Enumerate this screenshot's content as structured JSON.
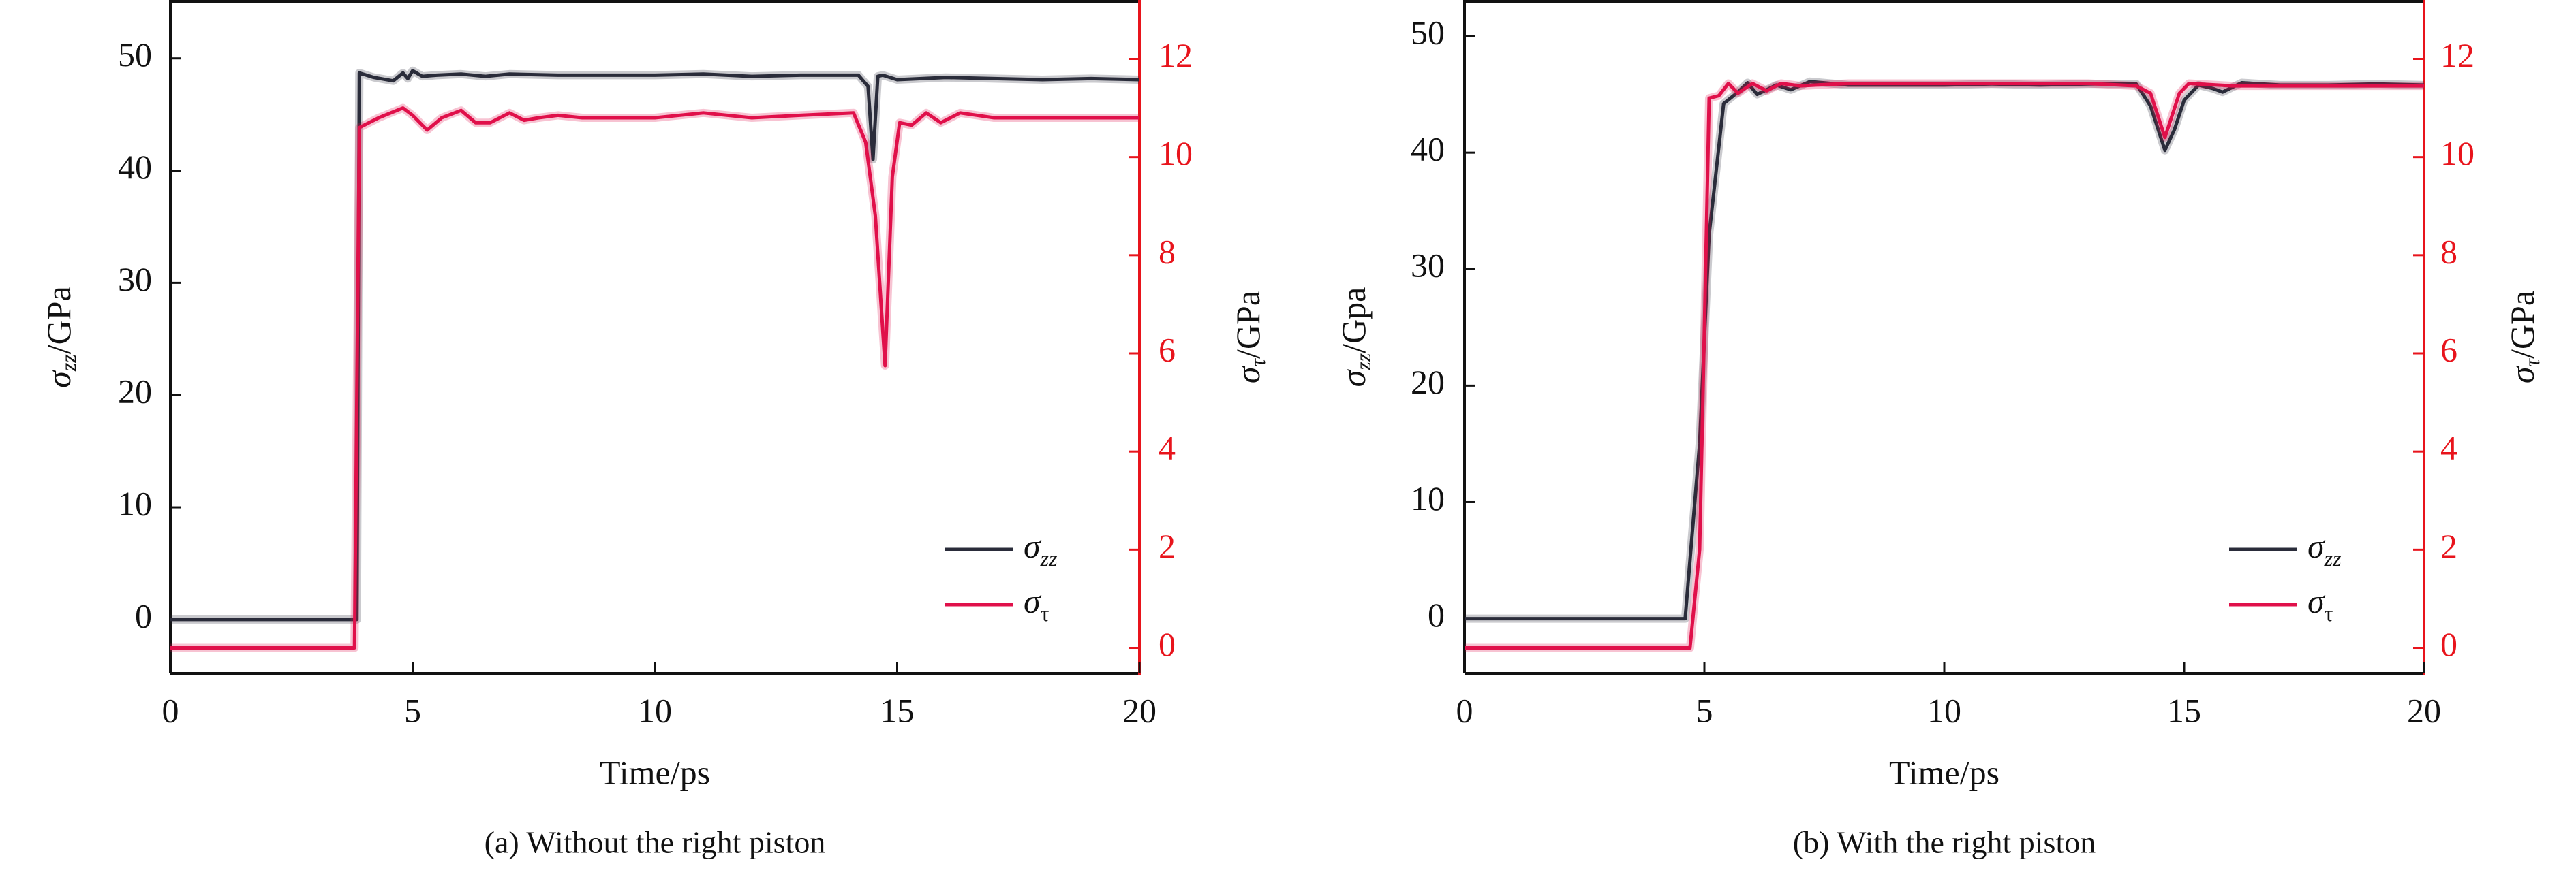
{
  "colors": {
    "szz": "#2a2c3a",
    "st": "#e0104a",
    "right_axis": "#e8141c"
  },
  "chart_data": [
    {
      "type": "line",
      "caption": "(a) Without the right piston",
      "xlabel": "Time/ps",
      "ylabel_left": {
        "sym": "σ",
        "sub": "zz",
        "unit": "/GPa"
      },
      "ylabel_right": {
        "sym": "σ",
        "sub": "τ",
        "unit": "/GPa"
      },
      "xlim": [
        0,
        20
      ],
      "ylim_left": [
        -4.8,
        55.2
      ],
      "ylim_right": [
        -0.52,
        13.2
      ],
      "xticks": [
        0,
        5,
        10,
        15,
        20
      ],
      "yticks_left": [
        0,
        10,
        20,
        30,
        40,
        50
      ],
      "yticks_right": [
        0,
        2,
        4,
        6,
        8,
        10,
        12
      ],
      "legend": {
        "position": "bottom-right",
        "entries": [
          {
            "sym": "σ",
            "sub": "zz"
          },
          {
            "sym": "σ",
            "sub": "τ"
          }
        ]
      },
      "series": [
        {
          "name": "σzz",
          "axis": "left",
          "x": [
            0,
            3.85,
            3.9,
            4.2,
            4.6,
            4.8,
            4.9,
            5.0,
            5.2,
            5.5,
            6,
            6.5,
            7,
            8,
            9,
            10,
            11,
            12,
            13,
            14.2,
            14.4,
            14.5,
            14.6,
            14.7,
            15,
            16,
            17,
            18,
            19,
            20
          ],
          "y": [
            0,
            0,
            48.7,
            48.3,
            48.0,
            48.7,
            48.2,
            48.9,
            48.4,
            48.5,
            48.6,
            48.4,
            48.6,
            48.5,
            48.5,
            48.5,
            48.6,
            48.4,
            48.5,
            48.5,
            47.5,
            41,
            48.4,
            48.5,
            48.1,
            48.3,
            48.2,
            48.1,
            48.2,
            48.1
          ]
        },
        {
          "name": "στ",
          "axis": "right",
          "x": [
            0,
            3.8,
            3.9,
            4.3,
            4.8,
            5.0,
            5.3,
            5.6,
            6.0,
            6.3,
            6.6,
            7.0,
            7.3,
            7.6,
            8,
            8.5,
            9,
            10,
            11,
            12,
            13,
            14.1,
            14.35,
            14.55,
            14.75,
            14.9,
            15.05,
            15.3,
            15.6,
            15.9,
            16.3,
            17,
            18,
            19,
            20
          ],
          "y": [
            0,
            0,
            10.6,
            10.8,
            11.0,
            10.85,
            10.55,
            10.8,
            10.95,
            10.7,
            10.7,
            10.9,
            10.75,
            10.8,
            10.85,
            10.8,
            10.8,
            10.8,
            10.9,
            10.8,
            10.85,
            10.9,
            10.3,
            8.8,
            5.75,
            9.6,
            10.7,
            10.65,
            10.9,
            10.7,
            10.9,
            10.8,
            10.8,
            10.8,
            10.8
          ]
        }
      ]
    },
    {
      "type": "line",
      "caption": "(b) With the right piston",
      "xlabel": "Time/ps",
      "ylabel_left": {
        "sym": "σ",
        "sub": "zz",
        "unit": "/Gpa"
      },
      "ylabel_right": {
        "sym": "σ",
        "sub": "τ",
        "unit": "/GPa"
      },
      "xlim": [
        0,
        20
      ],
      "ylim_left": [
        -4.7,
        53.1
      ],
      "ylim_right": [
        -0.52,
        13.2
      ],
      "xticks": [
        0,
        5,
        10,
        15,
        20
      ],
      "yticks_left": [
        0,
        10,
        20,
        30,
        40,
        50
      ],
      "yticks_right": [
        0,
        2,
        4,
        6,
        8,
        10,
        12
      ],
      "legend": {
        "position": "bottom-right",
        "entries": [
          {
            "sym": "σ",
            "sub": "zz"
          },
          {
            "sym": "σ",
            "sub": "τ"
          }
        ]
      },
      "series": [
        {
          "name": "σzz",
          "axis": "left",
          "x": [
            0,
            4.6,
            4.9,
            5.1,
            5.4,
            5.7,
            5.9,
            6.1,
            6.5,
            6.8,
            7.2,
            8,
            9,
            10,
            11,
            12,
            13,
            14,
            14.3,
            14.6,
            14.8,
            15.0,
            15.3,
            15.6,
            15.8,
            16.2,
            17,
            18,
            19,
            20
          ],
          "y": [
            0,
            0,
            15,
            33,
            44.2,
            45.2,
            46,
            45,
            45.8,
            45.4,
            46.1,
            45.8,
            45.8,
            45.8,
            45.9,
            45.8,
            45.9,
            45.9,
            44,
            40.2,
            42,
            44.5,
            45.8,
            45.5,
            45.2,
            46,
            45.8,
            45.8,
            45.9,
            45.8
          ]
        },
        {
          "name": "στ",
          "axis": "right",
          "x": [
            0,
            4.7,
            4.9,
            5.0,
            5.1,
            5.3,
            5.5,
            5.7,
            6.0,
            6.3,
            6.6,
            7,
            8,
            9,
            10,
            11,
            12,
            13,
            14,
            14.3,
            14.6,
            14.9,
            15.1,
            16,
            17,
            18,
            19,
            20
          ],
          "y": [
            0,
            0,
            2,
            6.5,
            11.2,
            11.25,
            11.5,
            11.3,
            11.5,
            11.35,
            11.5,
            11.45,
            11.5,
            11.5,
            11.5,
            11.5,
            11.5,
            11.5,
            11.45,
            11.3,
            10.4,
            11.3,
            11.5,
            11.45,
            11.45,
            11.45,
            11.45,
            11.45
          ]
        }
      ]
    }
  ]
}
